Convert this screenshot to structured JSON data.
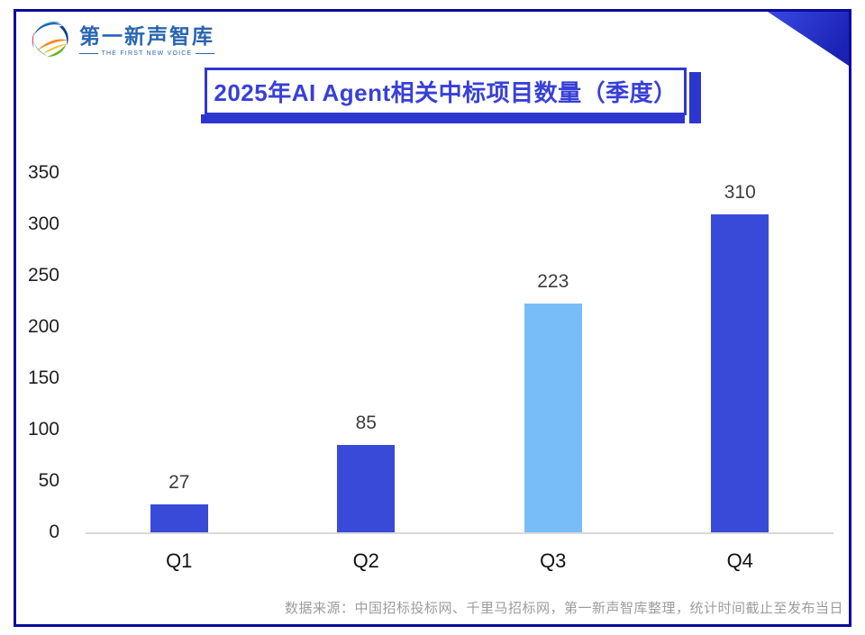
{
  "page": {
    "frame_color": "#0a0a9e",
    "background": "#ffffff"
  },
  "logo": {
    "name": "第一新声智库",
    "tagline": "THE FIRST NEW VOICE",
    "text_color": "#2a65b0"
  },
  "title": {
    "text": "2025年AI Agent相关中标项目数量（季度）",
    "text_color": "#3840d8",
    "border_color": "#2e38d2",
    "shadow_color": "#2c36cf"
  },
  "chart_data": {
    "type": "bar",
    "title": "2025年AI Agent相关中标项目数量（季度）",
    "categories": [
      "Q1",
      "Q2",
      "Q3",
      "Q4"
    ],
    "values": [
      27,
      85,
      223,
      310
    ],
    "bar_colors": [
      "#3a4ad8",
      "#3a4ad8",
      "#79bdf8",
      "#3a4ad8"
    ],
    "highlight_color": "#79bdf8",
    "primary_color": "#3a4ad8",
    "y_ticks": [
      350,
      300,
      250,
      200,
      150,
      100,
      50,
      0
    ],
    "ylim": [
      0,
      350
    ],
    "xlabel": "",
    "ylabel": "",
    "grid": false,
    "legend": "none",
    "value_labels": true,
    "baseline_color": "#d9d9d9"
  },
  "footer": {
    "text": "数据来源：中国招标投标网、千里马招标网，第一新声智库整理，统计时间截止至发布当日",
    "color": "#9c9c9c"
  }
}
